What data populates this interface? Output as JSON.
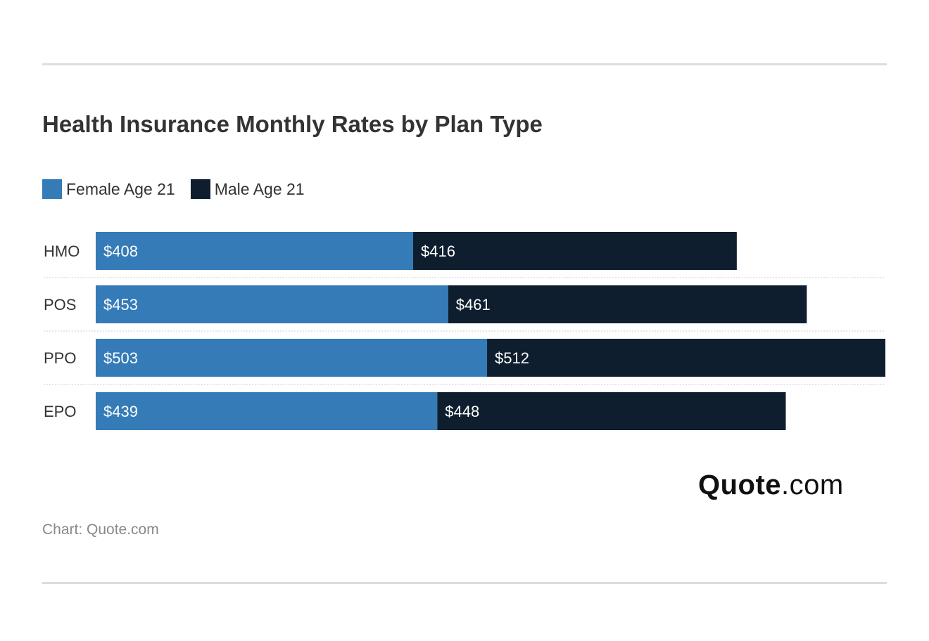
{
  "header": {
    "title": "Health Insurance Monthly Rates by Plan Type"
  },
  "legend": [
    {
      "label": "Female Age 21",
      "color": "#347bb8"
    },
    {
      "label": "Male Age 21",
      "color": "#0e1e2e"
    }
  ],
  "chart_data": {
    "type": "bar",
    "orientation": "horizontal",
    "stacked": true,
    "title": "Health Insurance Monthly Rates by Plan Type",
    "categories": [
      "HMO",
      "POS",
      "PPO",
      "EPO"
    ],
    "series": [
      {
        "name": "Female Age 21",
        "color": "#347bb8",
        "values": [
          408,
          453,
          503,
          439
        ],
        "labels": [
          "$408",
          "$453",
          "$503",
          "$439"
        ]
      },
      {
        "name": "Male Age 21",
        "color": "#0e1e2e",
        "values": [
          416,
          461,
          512,
          448
        ],
        "labels": [
          "$416",
          "$461",
          "$512",
          "$448"
        ]
      }
    ],
    "xlabel": "",
    "ylabel": "",
    "xlim": [
      0,
      1015
    ],
    "grid": false,
    "legend_position": "top-left"
  },
  "branding": {
    "logo_bold": "Quote",
    "logo_light": ".com"
  },
  "footer": {
    "source": "Chart: Quote.com"
  }
}
